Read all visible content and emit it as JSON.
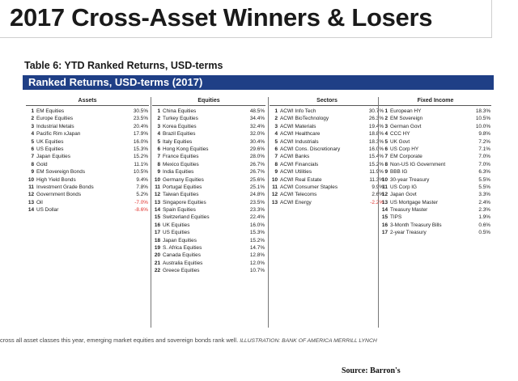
{
  "header": {
    "title": "2017 Cross-Asset Winners & Losers"
  },
  "table": {
    "caption": "Table 6: YTD Ranked Returns, USD-terms",
    "band_title": "Ranked Returns, USD-terms (2017)",
    "colors": {
      "band": "#1f3f86",
      "negative": "#e0302b"
    },
    "columns": [
      {
        "header": "Assets",
        "rows": [
          {
            "rank": "1",
            "name": "EM Equities",
            "value": "30.5%"
          },
          {
            "rank": "2",
            "name": "Europe Equities",
            "value": "23.5%"
          },
          {
            "rank": "3",
            "name": "Industrial Metals",
            "value": "20.4%"
          },
          {
            "rank": "4",
            "name": "Pacific Rim xJapan",
            "value": "17.9%"
          },
          {
            "rank": "5",
            "name": "UK Equities",
            "value": "16.0%"
          },
          {
            "rank": "6",
            "name": "US Equities",
            "value": "15.3%"
          },
          {
            "rank": "7",
            "name": "Japan Equities",
            "value": "15.2%"
          },
          {
            "rank": "8",
            "name": "Gold",
            "value": "11.1%"
          },
          {
            "rank": "9",
            "name": "EM Sovereign Bonds",
            "value": "10.5%"
          },
          {
            "rank": "10",
            "name": "High Yield Bonds",
            "value": "9.4%"
          },
          {
            "rank": "11",
            "name": "Investment Grade Bonds",
            "value": "7.8%"
          },
          {
            "rank": "12",
            "name": "Government Bonds",
            "value": "5.2%"
          },
          {
            "rank": "13",
            "name": "Oil",
            "value": "-7.0%",
            "negative": true
          },
          {
            "rank": "14",
            "name": "US Dollar",
            "value": "-8.6%",
            "negative": true
          }
        ]
      },
      {
        "header": "Equities",
        "rows": [
          {
            "rank": "1",
            "name": "China Equities",
            "value": "48.5%"
          },
          {
            "rank": "2",
            "name": "Turkey Equities",
            "value": "34.4%"
          },
          {
            "rank": "3",
            "name": "Korea Equities",
            "value": "32.4%"
          },
          {
            "rank": "4",
            "name": "Brazil Equities",
            "value": "32.0%"
          },
          {
            "rank": "5",
            "name": "Italy Equities",
            "value": "30.4%"
          },
          {
            "rank": "6",
            "name": "Hong Kong Equities",
            "value": "29.6%"
          },
          {
            "rank": "7",
            "name": "France Equities",
            "value": "28.0%"
          },
          {
            "rank": "8",
            "name": "Mexico Equities",
            "value": "26.7%"
          },
          {
            "rank": "9",
            "name": "India Equities",
            "value": "26.7%"
          },
          {
            "rank": "10",
            "name": "Germany Equities",
            "value": "25.6%"
          },
          {
            "rank": "11",
            "name": "Portugal Equities",
            "value": "25.1%"
          },
          {
            "rank": "12",
            "name": "Taiwan Equities",
            "value": "24.8%"
          },
          {
            "rank": "13",
            "name": "Singapore Equities",
            "value": "23.5%"
          },
          {
            "rank": "14",
            "name": "Spain Equities",
            "value": "23.3%"
          },
          {
            "rank": "15",
            "name": "Switzerland Equities",
            "value": "22.4%"
          },
          {
            "rank": "16",
            "name": "UK Equities",
            "value": "16.0%"
          },
          {
            "rank": "17",
            "name": "US Equities",
            "value": "15.3%"
          },
          {
            "rank": "18",
            "name": "Japan Equities",
            "value": "15.2%"
          },
          {
            "rank": "19",
            "name": "S. Africa Equities",
            "value": "14.7%"
          },
          {
            "rank": "20",
            "name": "Canada Equities",
            "value": "12.8%"
          },
          {
            "rank": "21",
            "name": "Australia Equities",
            "value": "12.0%"
          },
          {
            "rank": "22",
            "name": "Greece Equities",
            "value": "10.7%"
          }
        ]
      },
      {
        "header": "Sectors",
        "rows": [
          {
            "rank": "1",
            "name": "ACWI Info Tech",
            "value": "30.7%"
          },
          {
            "rank": "2",
            "name": "ACWI BioTechnology",
            "value": "26.3%"
          },
          {
            "rank": "3",
            "name": "ACWI Materials",
            "value": "19.4%"
          },
          {
            "rank": "4",
            "name": "ACWI Healthcare",
            "value": "18.8%"
          },
          {
            "rank": "5",
            "name": "ACWI Industrials",
            "value": "18.3%"
          },
          {
            "rank": "6",
            "name": "ACWI Cons. Discretionary",
            "value": "16.0%"
          },
          {
            "rank": "7",
            "name": "ACWI Banks",
            "value": "15.4%"
          },
          {
            "rank": "8",
            "name": "ACWI Financials",
            "value": "15.2%"
          },
          {
            "rank": "9",
            "name": "ACWI Utilities",
            "value": "11.9%"
          },
          {
            "rank": "10",
            "name": "ACWI Real Estate",
            "value": "11.3%"
          },
          {
            "rank": "11",
            "name": "ACWI Consumer Staples",
            "value": "9.9%"
          },
          {
            "rank": "12",
            "name": "ACWI Telecoms",
            "value": "2.6%"
          },
          {
            "rank": "13",
            "name": "ACWI Energy",
            "value": "-2.2%",
            "negative": true
          }
        ]
      },
      {
        "header": "Fixed Income",
        "rows": [
          {
            "rank": "1",
            "name": "European HY",
            "value": "18.3%"
          },
          {
            "rank": "2",
            "name": "EM Sovereign",
            "value": "10.5%"
          },
          {
            "rank": "3",
            "name": "German Govt",
            "value": "10.0%"
          },
          {
            "rank": "4",
            "name": "CCC HY",
            "value": "9.8%"
          },
          {
            "rank": "5",
            "name": "UK Govt",
            "value": "7.2%"
          },
          {
            "rank": "6",
            "name": "US Corp HY",
            "value": "7.1%"
          },
          {
            "rank": "7",
            "name": "EM Corporate",
            "value": "7.0%"
          },
          {
            "rank": "8",
            "name": "Non-US IG Government",
            "value": "7.0%"
          },
          {
            "rank": "9",
            "name": "BBB IG",
            "value": "6.3%"
          },
          {
            "rank": "10",
            "name": "30-year Treasury",
            "value": "5.5%"
          },
          {
            "rank": "11",
            "name": "US Corp IG",
            "value": "5.5%"
          },
          {
            "rank": "12",
            "name": "Japan Govt",
            "value": "3.3%"
          },
          {
            "rank": "13",
            "name": "US Mortgage Master",
            "value": "2.4%"
          },
          {
            "rank": "14",
            "name": "Treasury Master",
            "value": "2.3%"
          },
          {
            "rank": "15",
            "name": "TIPS",
            "value": "1.9%"
          },
          {
            "rank": "16",
            "name": "3-Month Treasury Bills",
            "value": "0.6%"
          },
          {
            "rank": "17",
            "name": "2-year Treasury",
            "value": "0.5%"
          }
        ]
      }
    ]
  },
  "caption": {
    "text": "cross all asset classes this year, emerging market equities and sovereign bonds rank well.",
    "credit": "ILLUSTRATION: BANK OF AMERICA MERRILL LYNCH"
  },
  "source": {
    "text": "Source:  Barron's"
  }
}
